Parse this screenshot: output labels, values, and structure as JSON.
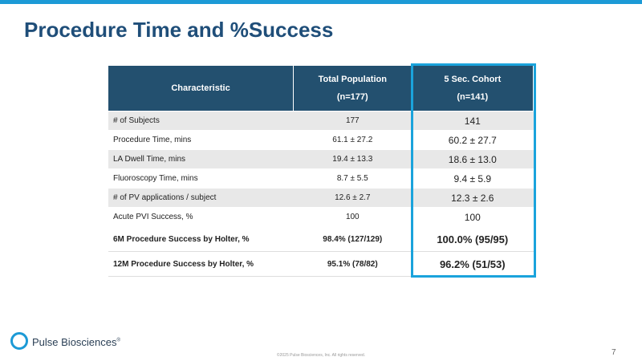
{
  "header": {
    "title": "Procedure Time and %Success"
  },
  "table": {
    "columns": [
      {
        "lines": [
          "Characteristic"
        ]
      },
      {
        "lines": [
          "Total Population",
          "(n=177)"
        ]
      },
      {
        "lines": [
          "5 Sec. Cohort",
          "(n=141)"
        ]
      }
    ],
    "rows": [
      [
        "# of Subjects",
        "177",
        "141"
      ],
      [
        "Procedure Time, mins",
        "61.1 ± 27.2",
        "60.2 ± 27.7"
      ],
      [
        "LA Dwell Time, mins",
        "19.4 ± 13.3",
        "18.6 ± 13.0"
      ],
      [
        "Fluoroscopy Time, mins",
        "8.7 ± 5.5",
        "9.4 ± 5.9"
      ],
      [
        "# of PV applications / subject",
        "12.6 ± 2.7",
        "12.3 ± 2.6"
      ],
      [
        "Acute PVI Success, %",
        "100",
        "100"
      ],
      [
        "6M Procedure Success by Holter, %",
        "98.4% (127/129)",
        "100.0% (95/95)"
      ],
      [
        "12M Procedure Success by Holter, %",
        "95.1% (78/82)",
        "96.2% (51/53)"
      ]
    ],
    "bold_from_row": 6
  },
  "footer": {
    "logo": "Pulse Biosciences",
    "logo_mark": "®",
    "copyright": "©2025 Pulse Biosciences, Inc. All rights reserved.",
    "page": "7"
  }
}
